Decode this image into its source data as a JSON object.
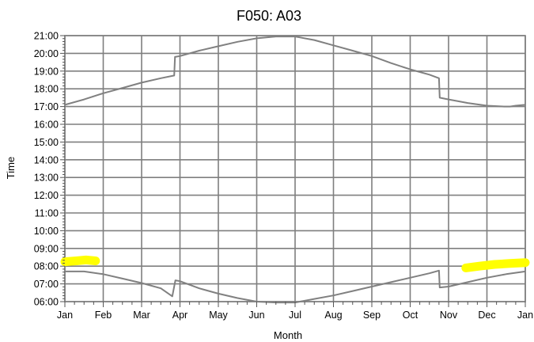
{
  "chart_data": {
    "type": "line",
    "title": "F050: A03",
    "xlabel": "Month",
    "ylabel": "Time",
    "x_tick_labels": [
      "Jan",
      "Feb",
      "Mar",
      "Apr",
      "May",
      "Jun",
      "Jul",
      "Aug",
      "Sep",
      "Oct",
      "Nov",
      "Dec",
      "Jan"
    ],
    "y_tick_labels": [
      "06:00",
      "07:00",
      "08:00",
      "09:00",
      "10:00",
      "11:00",
      "12:00",
      "13:00",
      "14:00",
      "15:00",
      "16:00",
      "17:00",
      "18:00",
      "19:00",
      "20:00",
      "21:00"
    ],
    "xlim": [
      0,
      12
    ],
    "ylim": [
      6,
      21
    ],
    "grid": true,
    "series": [
      {
        "color": "#808080",
        "points": [
          [
            0,
            17.1
          ],
          [
            0.5,
            17.4
          ],
          [
            1,
            17.75
          ],
          [
            1.5,
            18.05
          ],
          [
            2,
            18.35
          ],
          [
            2.5,
            18.6
          ],
          [
            2.85,
            18.75
          ],
          [
            2.87,
            19.8
          ],
          [
            3,
            19.85
          ],
          [
            3.5,
            20.15
          ],
          [
            4,
            20.4
          ],
          [
            4.5,
            20.65
          ],
          [
            5,
            20.85
          ],
          [
            5.5,
            20.95
          ],
          [
            6,
            20.95
          ],
          [
            6.5,
            20.75
          ],
          [
            7,
            20.45
          ],
          [
            7.5,
            20.15
          ],
          [
            8,
            19.85
          ],
          [
            8.5,
            19.45
          ],
          [
            9,
            19.1
          ],
          [
            9.5,
            18.8
          ],
          [
            9.75,
            18.6
          ],
          [
            9.77,
            17.5
          ],
          [
            10,
            17.4
          ],
          [
            10.5,
            17.2
          ],
          [
            11,
            17.05
          ],
          [
            11.45,
            17.0
          ],
          [
            11.6,
            17.0
          ],
          [
            11.75,
            17.05
          ],
          [
            12,
            17.1
          ]
        ]
      },
      {
        "color": "#808080",
        "points": [
          [
            0,
            7.7
          ],
          [
            0.5,
            7.7
          ],
          [
            1,
            7.55
          ],
          [
            1.5,
            7.3
          ],
          [
            2,
            7.05
          ],
          [
            2.5,
            6.75
          ],
          [
            2.8,
            6.3
          ],
          [
            2.88,
            7.2
          ],
          [
            3,
            7.15
          ],
          [
            3.5,
            6.75
          ],
          [
            4,
            6.45
          ],
          [
            4.5,
            6.2
          ],
          [
            5,
            6.0
          ],
          [
            5.5,
            5.95
          ],
          [
            6,
            5.95
          ],
          [
            6.5,
            6.15
          ],
          [
            7,
            6.35
          ],
          [
            7.5,
            6.6
          ],
          [
            8,
            6.85
          ],
          [
            8.5,
            7.1
          ],
          [
            9,
            7.35
          ],
          [
            9.5,
            7.6
          ],
          [
            9.75,
            7.75
          ],
          [
            9.77,
            6.8
          ],
          [
            10,
            6.85
          ],
          [
            10.5,
            7.1
          ],
          [
            11,
            7.35
          ],
          [
            11.5,
            7.55
          ],
          [
            12,
            7.7
          ]
        ]
      }
    ],
    "highlights": [
      {
        "color": "#ffff00",
        "points": [
          [
            0,
            8.25
          ],
          [
            0.3,
            8.3
          ],
          [
            0.55,
            8.35
          ],
          [
            0.8,
            8.3
          ]
        ]
      },
      {
        "color": "#ffff00",
        "points": [
          [
            10.45,
            7.9
          ],
          [
            10.8,
            8.0
          ],
          [
            11.2,
            8.1
          ],
          [
            11.6,
            8.15
          ],
          [
            12,
            8.2
          ]
        ]
      }
    ]
  }
}
